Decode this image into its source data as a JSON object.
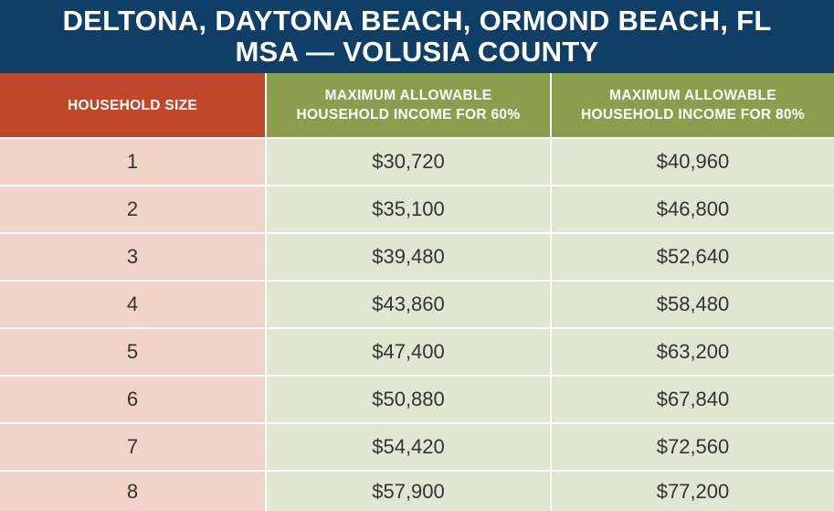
{
  "title": {
    "line1": "DELTONA, DAYTONA BEACH, ORMOND BEACH, FL",
    "line2": "MSA — VOLUSIA COUNTY"
  },
  "columns": {
    "household_size": "HOUSEHOLD SIZE",
    "max_60": [
      "MAXIMUM ALLOWABLE",
      "HOUSEHOLD INCOME FOR 60%"
    ],
    "max_80": [
      "MAXIMUM ALLOWABLE",
      "HOUSEHOLD INCOME FOR 80%"
    ]
  },
  "rows": [
    {
      "size": "1",
      "max_60": "$30,720",
      "max_80": "$40,960"
    },
    {
      "size": "2",
      "max_60": "$35,100",
      "max_80": "$46,800"
    },
    {
      "size": "3",
      "max_60": "$39,480",
      "max_80": "$52,640"
    },
    {
      "size": "4",
      "max_60": "$43,860",
      "max_80": "$58,480"
    },
    {
      "size": "5",
      "max_60": "$47,400",
      "max_80": "$63,200"
    },
    {
      "size": "6",
      "max_60": "$50,880",
      "max_80": "$67,840"
    },
    {
      "size": "7",
      "max_60": "$54,420",
      "max_80": "$72,560"
    },
    {
      "size": "8",
      "max_60": "$57,900",
      "max_80": "$77,200"
    }
  ],
  "colors": {
    "title_bg": "#0f3f66",
    "size_header_bg": "#c0472a",
    "income_header_bg": "#8a9e4e",
    "size_cell_bg": "#f2d3c8",
    "income_cell_bg": "#e1e6d3",
    "cell_text": "#333333"
  }
}
